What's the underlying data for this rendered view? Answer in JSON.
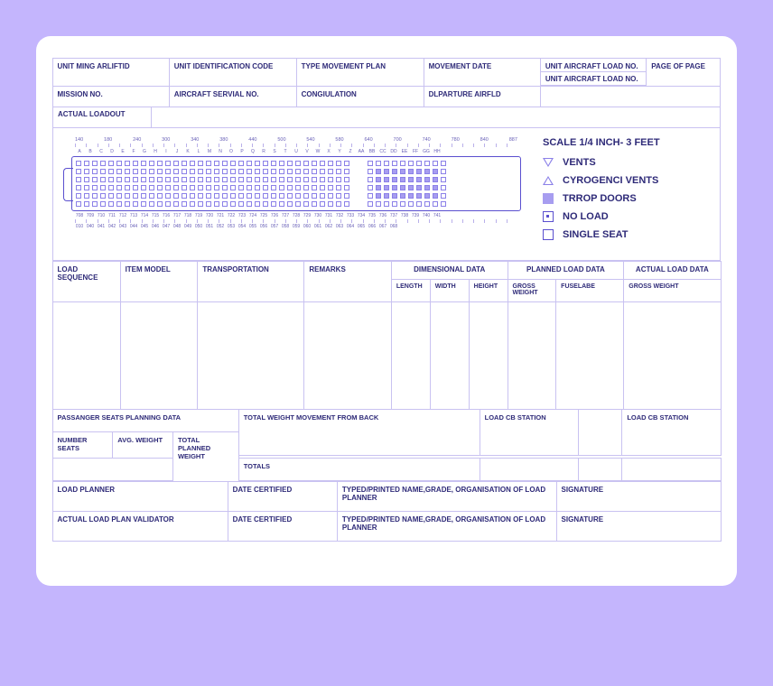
{
  "colors": {
    "page_bg": "#c4b5fd",
    "sheet_bg": "#ffffff",
    "border": "#c9c2f1",
    "text": "#2e2a78",
    "accent": "#5a4fcf",
    "accent_light": "#a79df0"
  },
  "header": {
    "r1c1": "UNIT MING ARLIFTID",
    "r1c2": "UNIT IDENTIFICATION CODE",
    "r1c3": "TYPE MOVEMENT PLAN",
    "r1c4": "MOVEMENT DATE",
    "r1c5a": "UNIT AIRCRAFT LOAD NO.",
    "r1c5b": "UNIT AIRCRAFT LOAD NO.",
    "r1c6": "PAGE OF PAGE",
    "r2c1": "MISSION NO.",
    "r2c2": "AIRCRAFT SERVIAL NO.",
    "r2c3": "CONGIULATION",
    "r2c4": "DLPARTURE AIRFLD"
  },
  "loadout_label": "ACTUAL LOADOUT",
  "legend": {
    "title": "SCALE 1/4 INCH- 3 FEET",
    "items": [
      {
        "symbol": "tri-down",
        "label": "VENTS"
      },
      {
        "symbol": "tri-up",
        "label": "CYROGENCI VENTS"
      },
      {
        "symbol": "sq-fill",
        "label": "TRROP DOORS"
      },
      {
        "symbol": "sq-dot",
        "label": "NO LOAD"
      },
      {
        "symbol": "sq-open",
        "label": "SINGLE SEAT"
      }
    ]
  },
  "schematic": {
    "ruler_top": [
      "140",
      "180",
      "240",
      "300",
      "340",
      "380",
      "440",
      "500",
      "540",
      "580",
      "640",
      "700",
      "740",
      "780",
      "840",
      "887"
    ],
    "main_seats_per_row": 34,
    "main_rows": 6,
    "aft_cols": 10,
    "aft_rows": 6,
    "station_labels_top": [
      "A",
      "B",
      "C",
      "D",
      "E",
      "F",
      "G",
      "H",
      "I",
      "J",
      "K",
      "L",
      "M",
      "N",
      "O",
      "P",
      "Q",
      "R",
      "S",
      "T",
      "U",
      "V",
      "W",
      "X",
      "Y",
      "Z",
      "AA",
      "BB",
      "CC",
      "DD",
      "EE",
      "FF",
      "GG",
      "HH"
    ],
    "station_nums_mid": [
      "708",
      "709",
      "710",
      "711",
      "712",
      "713",
      "714",
      "715",
      "716",
      "717",
      "718",
      "719",
      "720",
      "721",
      "722",
      "723",
      "724",
      "725",
      "726",
      "727",
      "728",
      "729",
      "730",
      "731",
      "732",
      "733",
      "734",
      "735",
      "736",
      "737",
      "738",
      "739",
      "740",
      "741"
    ],
    "station_nums_bot": [
      "010",
      "040",
      "041",
      "042",
      "043",
      "044",
      "045",
      "046",
      "047",
      "048",
      "049",
      "050",
      "051",
      "052",
      "053",
      "054",
      "055",
      "056",
      "057",
      "058",
      "059",
      "060",
      "061",
      "062",
      "063",
      "064",
      "065",
      "066",
      "067",
      "068"
    ]
  },
  "datatable": {
    "cols": {
      "load_seq": "LOAD SEQUENCE",
      "item_model": "ITEM MODEL",
      "transportation": "TRANSPORTATION",
      "remarks": "REMARKS",
      "dim_data": "DIMENSIONAL DATA",
      "length": "LENGTH",
      "width": "WIDTH",
      "height": "HEIGHT",
      "planned": "PLANNED LOAD DATA",
      "gross_weight": "GROSS WEIGHT",
      "fuselabe": "FUSELABE",
      "actual": "ACTUAL LOAD DATA",
      "gross_weight2": "GROSS WEIGHT"
    }
  },
  "pax": {
    "title": "PASSANGER SEATS PLANNING DATA",
    "number_seats": "NUMBER SEATS",
    "avg_weight": "AVG. WEIGHT",
    "total_planned_weight": "TOTAL PLANNED WEIGHT",
    "total_weight_back": "TOTAL WEIGHT MOVEMENT FROM BACK",
    "totals": "TOTALS",
    "load_cb_station_l": "LOAD CB STATION",
    "load_cb_station_r": "LOAD CB STATION"
  },
  "sig": {
    "load_planner": "LOAD PLANNER",
    "date_cert": "DATE CERTIFIED",
    "typed_name": "TYPED/PRINTED NAME,GRADE, ORGANISATION OF LOAD PLANNER",
    "signature": "SIGNATURE",
    "validator": "ACTUAL LOAD PLAN VALIDATOR"
  }
}
